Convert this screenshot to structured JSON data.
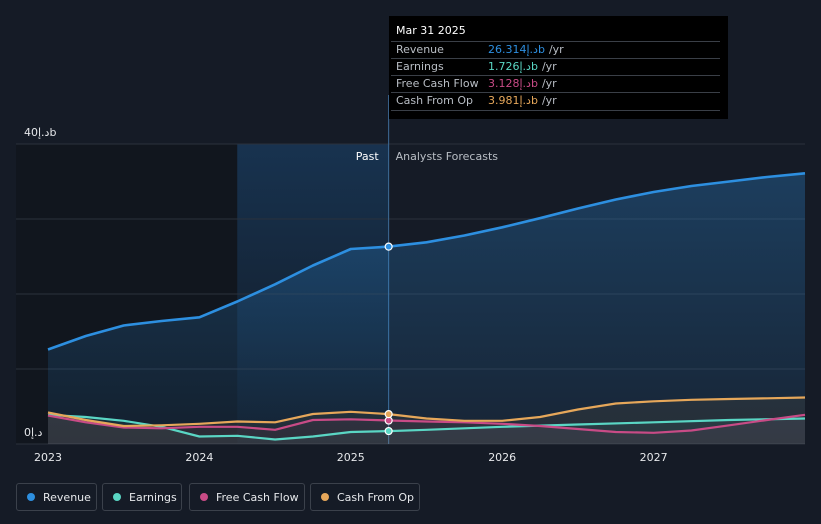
{
  "colors": {
    "revenue": "#2d8fe0",
    "earnings": "#5ad6c4",
    "free_cash_flow": "#c84b86",
    "cash_from_op": "#e6a75a",
    "background": "#151b26"
  },
  "tooltip": {
    "date": "Mar 31 2025",
    "unit": "/yr",
    "rows": [
      {
        "label": "Revenue",
        "value": "26.314د.إb"
      },
      {
        "label": "Earnings",
        "value": "1.726د.إb"
      },
      {
        "label": "Free Cash Flow",
        "value": "3.128د.إb"
      },
      {
        "label": "Cash From Op",
        "value": "3.981د.إb"
      }
    ]
  },
  "chart_data": {
    "type": "line",
    "title": "",
    "ylabel": "",
    "xlabel": "",
    "ylim": [
      0,
      40
    ],
    "xlim": [
      2023.0,
      2028.0
    ],
    "y_tick_labels": {
      "top": "40د.إb",
      "bottom": "0د.إ"
    },
    "past_label": "Past",
    "forecast_label": "Analysts Forecasts",
    "divider_x": 2025.25,
    "highlight_start_x": 2024.25,
    "x_ticks": [
      {
        "value": 2023.0,
        "label": "2023"
      },
      {
        "value": 2024.0,
        "label": "2024"
      },
      {
        "value": 2025.0,
        "label": "2025"
      },
      {
        "value": 2026.0,
        "label": "2026"
      },
      {
        "value": 2027.0,
        "label": "2027"
      }
    ],
    "series": [
      {
        "key": "revenue",
        "name": "Revenue",
        "area": true,
        "points": [
          [
            2023.0,
            12.6
          ],
          [
            2023.25,
            14.4
          ],
          [
            2023.5,
            15.8
          ],
          [
            2023.75,
            16.4
          ],
          [
            2024.0,
            16.9
          ],
          [
            2024.25,
            19.0
          ],
          [
            2024.5,
            21.3
          ],
          [
            2024.75,
            23.8
          ],
          [
            2025.0,
            26.0
          ],
          [
            2025.25,
            26.314
          ],
          [
            2025.5,
            26.9
          ],
          [
            2025.75,
            27.8
          ],
          [
            2026.0,
            28.9
          ],
          [
            2026.25,
            30.1
          ],
          [
            2026.5,
            31.4
          ],
          [
            2026.75,
            32.6
          ],
          [
            2027.0,
            33.6
          ],
          [
            2027.25,
            34.4
          ],
          [
            2027.5,
            35.0
          ],
          [
            2027.75,
            35.6
          ],
          [
            2028.0,
            36.1
          ]
        ]
      },
      {
        "key": "earnings",
        "name": "Earnings",
        "points": [
          [
            2023.0,
            3.9
          ],
          [
            2023.25,
            3.6
          ],
          [
            2023.5,
            3.1
          ],
          [
            2023.75,
            2.3
          ],
          [
            2024.0,
            1.0
          ],
          [
            2024.25,
            1.1
          ],
          [
            2024.5,
            0.6
          ],
          [
            2024.75,
            1.0
          ],
          [
            2025.0,
            1.6
          ],
          [
            2025.25,
            1.726
          ],
          [
            2025.5,
            1.9
          ],
          [
            2025.75,
            2.1
          ],
          [
            2026.0,
            2.3
          ],
          [
            2026.5,
            2.6
          ],
          [
            2027.0,
            2.9
          ],
          [
            2027.5,
            3.2
          ],
          [
            2028.0,
            3.4
          ]
        ]
      },
      {
        "key": "free_cash_flow",
        "name": "Free Cash Flow",
        "points": [
          [
            2023.0,
            3.8
          ],
          [
            2023.25,
            2.9
          ],
          [
            2023.5,
            2.2
          ],
          [
            2023.75,
            2.1
          ],
          [
            2024.0,
            2.3
          ],
          [
            2024.25,
            2.3
          ],
          [
            2024.5,
            1.9
          ],
          [
            2024.75,
            3.2
          ],
          [
            2025.0,
            3.3
          ],
          [
            2025.25,
            3.128
          ],
          [
            2025.5,
            3.0
          ],
          [
            2025.75,
            2.9
          ],
          [
            2026.0,
            2.7
          ],
          [
            2026.25,
            2.4
          ],
          [
            2026.5,
            2.0
          ],
          [
            2026.75,
            1.6
          ],
          [
            2027.0,
            1.5
          ],
          [
            2027.25,
            1.8
          ],
          [
            2027.5,
            2.5
          ],
          [
            2027.75,
            3.2
          ],
          [
            2028.0,
            3.9
          ]
        ]
      },
      {
        "key": "cash_from_op",
        "name": "Cash From Op",
        "points": [
          [
            2023.0,
            4.2
          ],
          [
            2023.25,
            3.2
          ],
          [
            2023.5,
            2.4
          ],
          [
            2023.75,
            2.5
          ],
          [
            2024.0,
            2.7
          ],
          [
            2024.25,
            3.0
          ],
          [
            2024.5,
            2.9
          ],
          [
            2024.75,
            4.0
          ],
          [
            2025.0,
            4.3
          ],
          [
            2025.25,
            3.981
          ],
          [
            2025.5,
            3.4
          ],
          [
            2025.75,
            3.1
          ],
          [
            2026.0,
            3.1
          ],
          [
            2026.25,
            3.6
          ],
          [
            2026.5,
            4.6
          ],
          [
            2026.75,
            5.4
          ],
          [
            2027.0,
            5.7
          ],
          [
            2027.25,
            5.9
          ],
          [
            2027.5,
            6.0
          ],
          [
            2027.75,
            6.1
          ],
          [
            2028.0,
            6.2
          ]
        ]
      }
    ]
  },
  "legend": [
    {
      "key": "revenue",
      "label": "Revenue"
    },
    {
      "key": "earnings",
      "label": "Earnings"
    },
    {
      "key": "free_cash_flow",
      "label": "Free Cash Flow"
    },
    {
      "key": "cash_from_op",
      "label": "Cash From Op"
    }
  ]
}
